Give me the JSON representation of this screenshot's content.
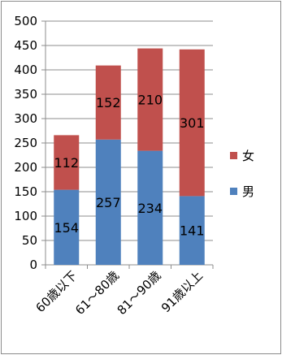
{
  "chart_data": {
    "type": "bar",
    "stacked": true,
    "categories": [
      "60歳以下",
      "61～80歳",
      "81～90歳",
      "91歳以上"
    ],
    "series": [
      {
        "name": "男",
        "values": [
          154,
          257,
          234,
          141
        ],
        "color": "#4F81BD"
      },
      {
        "name": "女",
        "values": [
          112,
          152,
          210,
          301
        ],
        "color": "#C0504D"
      }
    ],
    "ylim": [
      0,
      500
    ],
    "yticks": [
      "0",
      "50",
      "100",
      "150",
      "200",
      "250",
      "300",
      "350",
      "400",
      "450",
      "500"
    ],
    "grid": true,
    "legend_position": "right",
    "data_labels": true,
    "title": "",
    "xlabel": "",
    "ylabel": ""
  }
}
